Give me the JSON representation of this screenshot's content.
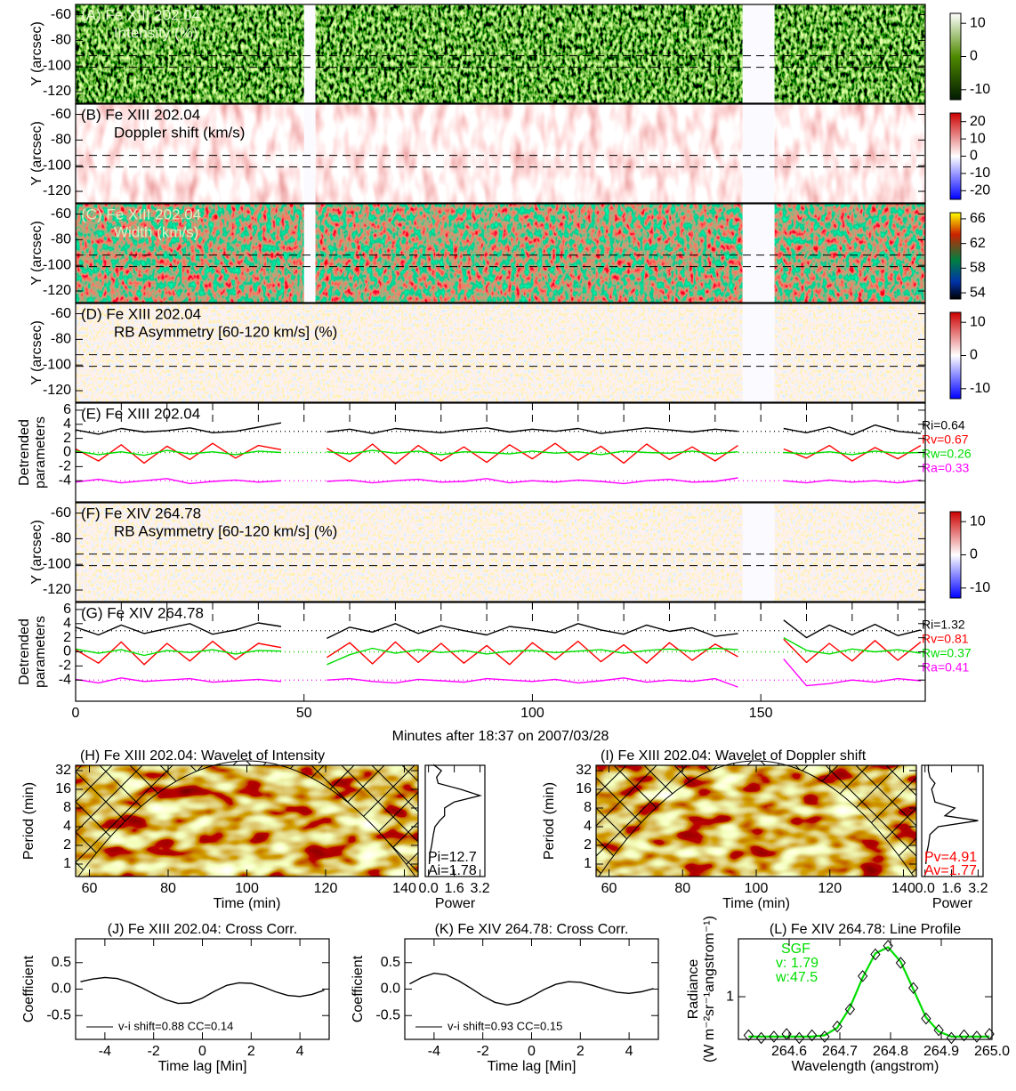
{
  "chart_data": [
    {
      "type": "heatmap",
      "title": "(A) Fe XIII 202.04",
      "subtitle": "Intensity (%)",
      "title_color": "#e8f5d0",
      "ylabel": "Y (arcsec)",
      "xlim": [
        0,
        186
      ],
      "ylim": [
        -129,
        -52
      ],
      "yticks": [
        -60,
        -80,
        -100,
        -120
      ],
      "hlines": [
        -92,
        -101
      ],
      "gaps": [
        [
          50,
          52.5
        ],
        [
          146,
          153
        ]
      ],
      "colormap": "green",
      "clim": [
        -13,
        13
      ],
      "cticks": [
        10,
        0,
        -10
      ]
    },
    {
      "type": "heatmap",
      "title": "(B) Fe XIII 202.04",
      "subtitle": "Doppler shift (km/s)",
      "title_color": "#000",
      "ylabel": "Y (arcsec)",
      "xlim": [
        0,
        186
      ],
      "ylim": [
        -129,
        -52
      ],
      "yticks": [
        -60,
        -80,
        -100,
        -120
      ],
      "hlines": [
        -92,
        -101
      ],
      "gaps": [
        [
          50,
          52.5
        ],
        [
          146,
          153
        ]
      ],
      "colormap": "doppler",
      "clim": [
        -25,
        25
      ],
      "cticks": [
        20,
        10,
        0,
        -10,
        -20
      ]
    },
    {
      "type": "heatmap",
      "title": "(C) Fe XIII 202.04",
      "subtitle": "Width (km/s)",
      "title_color": "#d8f0c0",
      "ylabel": "Y (arcsec)",
      "xlim": [
        0,
        186
      ],
      "ylim": [
        -129,
        -52
      ],
      "yticks": [
        -60,
        -80,
        -100,
        -120
      ],
      "hlines": [
        -92,
        -101
      ],
      "gaps": [
        [
          50,
          52.5
        ],
        [
          146,
          153
        ]
      ],
      "colormap": "width",
      "clim": [
        53,
        67
      ],
      "cticks": [
        66,
        62,
        58,
        54
      ]
    },
    {
      "type": "heatmap",
      "title": "(D) Fe XIII 202.04",
      "subtitle": "RB Asymmetry [60-120 km/s] (%)",
      "title_color": "#000",
      "ylabel": "Y (arcsec)",
      "xlim": [
        0,
        186
      ],
      "ylim": [
        -129,
        -52
      ],
      "yticks": [
        -60,
        -80,
        -100,
        -120
      ],
      "hlines": [
        -92,
        -101
      ],
      "gaps": [
        [
          146,
          153
        ]
      ],
      "colormap": "asym",
      "clim": [
        -13,
        13
      ],
      "cticks": [
        10,
        0,
        -10
      ]
    },
    {
      "type": "line",
      "title": "(E) Fe XIII 202.04",
      "ylabel": [
        "Detrended",
        "parameters"
      ],
      "xlim": [
        0,
        186
      ],
      "ylim": [
        -7,
        7
      ],
      "yticks": [
        6,
        4,
        2,
        0,
        -2,
        -4
      ],
      "vlines": [
        10,
        20,
        30,
        40,
        50,
        60,
        70,
        80,
        90,
        100,
        110,
        120,
        130,
        140,
        150,
        160,
        170,
        180
      ],
      "x": [
        0,
        5,
        10,
        15,
        20,
        25,
        30,
        35,
        40,
        45,
        50,
        55,
        60,
        65,
        70,
        75,
        80,
        85,
        90,
        95,
        100,
        105,
        110,
        115,
        120,
        125,
        130,
        135,
        140,
        145,
        150,
        155,
        160,
        165,
        170,
        175,
        180,
        185
      ],
      "series": [
        {
          "name": "Ri=0.64",
          "color": "#000000",
          "baseline": 3,
          "values": [
            3.2,
            2.6,
            3.4,
            2.9,
            3.1,
            3.5,
            2.8,
            3.0,
            3.6,
            4.2,
            null,
            2.9,
            3.3,
            2.7,
            3.4,
            3.1,
            2.8,
            3.2,
            3.5,
            2.9,
            3.3,
            3.0,
            3.4,
            2.7,
            3.1,
            3.5,
            3.2,
            2.9,
            3.3,
            3.0,
            null,
            3.4,
            2.8,
            3.6,
            2.5,
            3.9,
            3.0,
            2.7
          ]
        },
        {
          "name": "Rv=0.67",
          "color": "#ff0000",
          "baseline": 0,
          "values": [
            0.5,
            -1.2,
            1.1,
            -1.5,
            0.9,
            -1.0,
            1.3,
            -0.8,
            1.0,
            0.4,
            null,
            0.6,
            -1.3,
            1.2,
            -1.6,
            1.0,
            -1.2,
            0.8,
            -1.4,
            1.1,
            -0.9,
            1.3,
            -1.1,
            0.9,
            -1.5,
            1.2,
            -1.0,
            0.8,
            -1.2,
            1.0,
            null,
            0.5,
            -0.8,
            1.0,
            -1.2,
            0.7,
            -0.9,
            1.0
          ]
        },
        {
          "name": "Rw=0.26",
          "color": "#00dd00",
          "baseline": 0,
          "values": [
            0.2,
            -0.3,
            0.1,
            -0.4,
            0.3,
            -0.2,
            0.1,
            -0.3,
            0.2,
            0.0,
            null,
            0.1,
            -0.2,
            0.3,
            -0.1,
            0.2,
            -0.3,
            0.1,
            0.0,
            -0.2,
            0.2,
            -0.1,
            0.1,
            -0.3,
            0.2,
            0.0,
            -0.1,
            0.2,
            -0.2,
            0.1,
            null,
            0.0,
            -0.2,
            0.1,
            -0.3,
            0.2,
            -0.1,
            0.0
          ]
        },
        {
          "name": "Ra=0.33",
          "color": "#ff00ff",
          "baseline": -4,
          "values": [
            -4.2,
            -3.8,
            -4.3,
            -4.0,
            -3.7,
            -4.4,
            -4.1,
            -3.9,
            -4.2,
            -4.0,
            null,
            -4.1,
            -3.9,
            -4.3,
            -4.0,
            -3.8,
            -4.2,
            -4.1,
            -3.7,
            -4.3,
            -4.0,
            -4.2,
            -3.9,
            -4.1,
            -4.4,
            -4.0,
            -3.8,
            -4.2,
            -4.1,
            -3.6,
            null,
            -4.0,
            -4.3,
            -3.9,
            -4.2,
            -4.0,
            -4.3,
            -3.9
          ]
        }
      ]
    },
    {
      "type": "heatmap",
      "title": "(F) Fe XIV 264.78",
      "subtitle": "RB Asymmetry [60-120 km/s] (%)",
      "title_color": "#000",
      "ylabel": "Y (arcsec)",
      "xlim": [
        0,
        186
      ],
      "ylim": [
        -129,
        -52
      ],
      "yticks": [
        -60,
        -80,
        -100,
        -120
      ],
      "hlines": [
        -92,
        -101
      ],
      "gaps": [
        [
          146,
          153
        ]
      ],
      "colormap": "asym",
      "clim": [
        -13,
        13
      ],
      "cticks": [
        10,
        0,
        -10
      ]
    },
    {
      "type": "line",
      "title": "(G) Fe XIV 264.78",
      "ylabel": [
        "Detrended",
        "parameters"
      ],
      "xlim": [
        0,
        186
      ],
      "ylim": [
        -7,
        7
      ],
      "yticks": [
        6,
        4,
        2,
        0,
        -2,
        -4
      ],
      "xticks": [
        0,
        50,
        100,
        150
      ],
      "xlabel": "Minutes after 18:37 on 2007/03/28",
      "vlines": [
        10,
        20,
        30,
        40,
        50,
        60,
        70,
        80,
        90,
        100,
        110,
        120,
        130,
        140,
        150,
        160,
        170,
        180
      ],
      "x": [
        0,
        5,
        10,
        15,
        20,
        25,
        30,
        35,
        40,
        45,
        50,
        55,
        60,
        65,
        70,
        75,
        80,
        85,
        90,
        95,
        100,
        105,
        110,
        115,
        120,
        125,
        130,
        135,
        140,
        145,
        150,
        155,
        160,
        165,
        170,
        175,
        180,
        185
      ],
      "series": [
        {
          "name": "Ri=1.32",
          "color": "#000000",
          "baseline": 3,
          "values": [
            3.5,
            2.4,
            3.8,
            2.6,
            3.3,
            4.0,
            2.5,
            3.1,
            4.1,
            3.6,
            null,
            1.9,
            3.5,
            2.8,
            4.0,
            2.6,
            3.7,
            3.0,
            2.4,
            3.6,
            3.2,
            2.7,
            4.0,
            3.1,
            2.5,
            3.8,
            2.9,
            3.4,
            2.2,
            2.6,
            null,
            4.5,
            2.0,
            3.8,
            2.4,
            3.9,
            2.3,
            3.1
          ]
        },
        {
          "name": "Rv=0.81",
          "color": "#ff0000",
          "baseline": 0,
          "values": [
            0.3,
            -1.6,
            1.4,
            -1.8,
            1.2,
            -1.3,
            1.5,
            -1.1,
            1.2,
            0.6,
            null,
            -0.8,
            1.3,
            -1.7,
            1.4,
            -1.5,
            1.2,
            -1.6,
            0.9,
            -1.8,
            1.3,
            -1.1,
            1.5,
            -1.4,
            1.0,
            -1.6,
            1.3,
            -1.2,
            1.1,
            -0.7,
            null,
            1.8,
            -1.5,
            1.2,
            -1.3,
            1.6,
            -1.2,
            1.4
          ]
        },
        {
          "name": "Rw=0.37",
          "color": "#00dd00",
          "baseline": 0,
          "values": [
            0.4,
            -0.2,
            0.3,
            -0.5,
            0.2,
            -0.1,
            0.3,
            -0.3,
            0.2,
            0.1,
            null,
            -1.8,
            -0.4,
            0.5,
            -0.2,
            0.3,
            -0.1,
            0.2,
            -0.3,
            0.1,
            0.2,
            -0.1,
            0.1,
            0.3,
            -0.2,
            0.2,
            0.4,
            0.1,
            0.5,
            0.3,
            null,
            2.0,
            0.2,
            -0.3,
            0.4,
            0.0,
            0.3,
            -0.2
          ]
        },
        {
          "name": "Ra=0.41",
          "color": "#ff00ff",
          "baseline": -4,
          "values": [
            -3.9,
            -4.4,
            -3.7,
            -4.2,
            -4.0,
            -3.8,
            -4.3,
            -4.1,
            -3.9,
            -4.2,
            null,
            -4.0,
            -3.8,
            -4.2,
            -4.4,
            -3.9,
            -4.1,
            -4.3,
            -3.8,
            -4.0,
            -4.2,
            -3.9,
            -4.4,
            -4.1,
            -3.7,
            -4.3,
            -4.0,
            -4.2,
            -3.8,
            -5.0,
            null,
            -1.0,
            -4.8,
            -4.5,
            -4.0,
            -4.3,
            -3.8,
            -4.1
          ]
        }
      ]
    },
    {
      "type": "wavelet",
      "title": "(H) Fe XIII 202.04: Wavelet of Intensity",
      "xlim": [
        56.5,
        143.5
      ],
      "xticks": [
        60,
        80,
        100,
        120,
        140
      ],
      "xlabel": "Time (min)",
      "ylabel": "Period (min)",
      "ylim": [
        0.63,
        39
      ],
      "yticks": [
        1,
        2,
        4,
        8,
        16,
        32
      ],
      "log_y": true,
      "power": {
        "xlim": [
          -0.2,
          3.5
        ],
        "xticks": [
          {
            "value": 0,
            "label": "0.0"
          },
          1.6,
          3.2
        ],
        "xlabel": "Power",
        "periods": [
          1,
          1.5,
          2,
          3,
          4,
          5,
          6,
          8,
          10,
          12.7,
          16,
          20,
          25,
          32,
          40
        ],
        "values": [
          0.05,
          0.1,
          0.2,
          0.3,
          0.4,
          0.7,
          1.0,
          1.0,
          1.6,
          3.2,
          2.0,
          0.6,
          0.5,
          0.8,
          0.3
        ],
        "annotations": [
          {
            "text": "Pi=12.7",
            "color": "#000000"
          },
          {
            "text": "Ai=1.78",
            "color": "#000000"
          }
        ]
      }
    },
    {
      "type": "wavelet",
      "title": "(I) Fe XIII 202.04: Wavelet of Doppler shift",
      "xlim": [
        56.5,
        143.5
      ],
      "xticks": [
        60,
        80,
        100,
        120,
        140
      ],
      "xlabel": "Time (min)",
      "ylabel": "Period (min)",
      "ylim": [
        0.63,
        39
      ],
      "yticks": [
        1,
        2,
        4,
        8,
        16,
        32
      ],
      "log_y": true,
      "power": {
        "xlim": [
          -0.2,
          3.5
        ],
        "xticks": [
          {
            "value": 0,
            "label": "0.0"
          },
          1.6,
          3.2
        ],
        "xlabel": "Power",
        "periods": [
          1,
          1.5,
          2,
          3,
          4,
          5,
          6,
          8,
          10,
          12.7,
          16,
          20,
          25,
          32,
          40
        ],
        "values": [
          0.05,
          0.1,
          0.2,
          0.3,
          0.8,
          3.2,
          1.2,
          1.8,
          0.6,
          0.5,
          0.4,
          0.6,
          0.3,
          0.2,
          0.2
        ],
        "annotations": [
          {
            "text": "Pv=4.91",
            "color": "#ff0000"
          },
          {
            "text": "Av=1.77",
            "color": "#ff0000"
          }
        ]
      }
    },
    {
      "type": "line",
      "title": "(J) Fe XIII 202.04: Cross Corr.",
      "xlabel": "Time lag [Min]",
      "ylabel": "Coefficient",
      "xlim": [
        -5.2,
        5.2
      ],
      "ylim": [
        -0.95,
        0.95
      ],
      "xticks": [
        -4,
        -2,
        0,
        2,
        4
      ],
      "yticks": [
        {
          "value": 0.5,
          "label": "0.5"
        },
        {
          "value": 0,
          "label": "0.0"
        },
        {
          "value": -0.5,
          "label": "-0.5"
        }
      ],
      "x": [
        -5,
        -4.5,
        -4,
        -3.5,
        -3,
        -2.5,
        -2,
        -1.5,
        -1,
        -0.5,
        0,
        0.5,
        1,
        1.5,
        2,
        2.5,
        3,
        3.5,
        4,
        4.5,
        5
      ],
      "series": [
        {
          "name": "v-i shift=0.88 CC=0.14",
          "color": "#000000",
          "values": [
            0.14,
            0.19,
            0.22,
            0.2,
            0.13,
            0.03,
            -0.09,
            -0.2,
            -0.27,
            -0.26,
            -0.17,
            -0.04,
            0.07,
            0.12,
            0.11,
            0.04,
            -0.05,
            -0.12,
            -0.14,
            -0.1,
            -0.02
          ]
        }
      ]
    },
    {
      "type": "line",
      "title": "(K) Fe XIV 264.78: Cross Corr.",
      "xlabel": "Time lag [Min]",
      "ylabel": "Coefficient",
      "xlim": [
        -5.2,
        5.2
      ],
      "ylim": [
        -0.95,
        0.95
      ],
      "xticks": [
        -4,
        -2,
        0,
        2,
        4
      ],
      "yticks": [
        {
          "value": 0.5,
          "label": "0.5"
        },
        {
          "value": 0,
          "label": "0.0"
        },
        {
          "value": -0.5,
          "label": "-0.5"
        }
      ],
      "x": [
        -5,
        -4.5,
        -4,
        -3.5,
        -3,
        -2.5,
        -2,
        -1.5,
        -1,
        -0.5,
        0,
        0.5,
        1,
        1.5,
        2,
        2.5,
        3,
        3.5,
        4,
        4.5,
        5
      ],
      "series": [
        {
          "name": "v-i shift=0.93 CC=0.15",
          "color": "#000000",
          "values": [
            0.1,
            0.22,
            0.3,
            0.27,
            0.16,
            0.02,
            -0.13,
            -0.25,
            -0.3,
            -0.25,
            -0.14,
            -0.01,
            0.09,
            0.14,
            0.13,
            0.07,
            0.0,
            -0.06,
            -0.08,
            -0.05,
            0.01
          ]
        }
      ]
    },
    {
      "type": "profile",
      "title": "(L) Fe XIV 264.78: Line Profile",
      "xlabel": "Wavelength (angstrom)",
      "ylabel": [
        "Radiance",
        "(W m⁻²sr⁻¹angstrom⁻¹)"
      ],
      "xlim": [
        264.5,
        265.0
      ],
      "ylim": [
        0.6,
        2.0
      ],
      "log_y": true,
      "xticks": [
        264.6,
        264.7,
        264.8,
        264.9,
        {
          "value": 265.0,
          "label": "265.0"
        }
      ],
      "yticks": [
        1
      ],
      "x": [
        264.52,
        264.545,
        264.57,
        264.595,
        264.62,
        264.645,
        264.67,
        264.695,
        264.72,
        264.745,
        264.77,
        264.795,
        264.82,
        264.845,
        264.87,
        264.895,
        264.92,
        264.945,
        264.97,
        264.995
      ],
      "values": [
        0.63,
        0.61,
        0.62,
        0.64,
        0.61,
        0.63,
        0.62,
        0.7,
        0.86,
        1.28,
        1.66,
        1.84,
        1.5,
        1.11,
        0.77,
        0.67,
        0.61,
        0.63,
        0.62,
        0.64
      ],
      "fit": [
        0.62,
        0.62,
        0.62,
        0.62,
        0.62,
        0.62,
        0.63,
        0.69,
        0.88,
        1.26,
        1.68,
        1.81,
        1.52,
        1.09,
        0.78,
        0.66,
        0.62,
        0.62,
        0.62,
        0.62
      ],
      "fit_color": "#00dd00",
      "annotations": [
        "SGF",
        "v: 1.79",
        "w:47.5"
      ]
    }
  ]
}
